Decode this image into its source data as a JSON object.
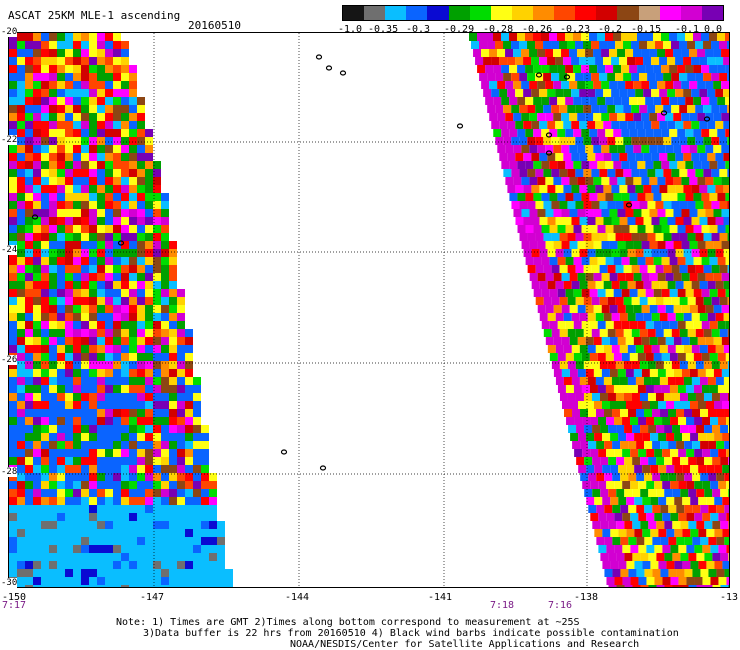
{
  "header": {
    "title": "ASCAT 25KM MLE-1 ascending",
    "date": "20160510"
  },
  "colorbar": {
    "labels": [
      "-1.0",
      "-0.35",
      "-0.3",
      "-0.29",
      "-0.28",
      "-0.26",
      "-0.23",
      "-0.2",
      "-0.15",
      "-0.1",
      "0.0"
    ],
    "colors": [
      "#151515",
      "#6f6f6f",
      "#0abeff",
      "#0a64ff",
      "#0a0ad2",
      "#00a000",
      "#00dc00",
      "#ffff14",
      "#ffd200",
      "#ff8c00",
      "#ff4600",
      "#ff0000",
      "#d20000",
      "#8c4614",
      "#c8a07a",
      "#ff00ff",
      "#d200d2",
      "#7800b4"
    ]
  },
  "axes": {
    "lon_labels": [
      "-150",
      "-147",
      "-144",
      "-141",
      "-138",
      "-13"
    ],
    "lat_labels": [
      "-20",
      "-22",
      "-24",
      "-26",
      "-28",
      "-30"
    ]
  },
  "time_labels": [
    "7:17",
    "7:18",
    "7:16"
  ],
  "footer": {
    "line1": "Note: 1) Times are GMT 2)Times along bottom correspond to measurement at ~25S",
    "line2": "3)Data buffer is 22 hrs from 20160510 4) Black wind barbs indicate possible contamination",
    "line3": "NOAA/NESDIS/Center for Satellite Applications and Research"
  },
  "map": {
    "lon_range": [
      -150,
      -135
    ],
    "lat_range": [
      -30,
      -20
    ]
  }
}
